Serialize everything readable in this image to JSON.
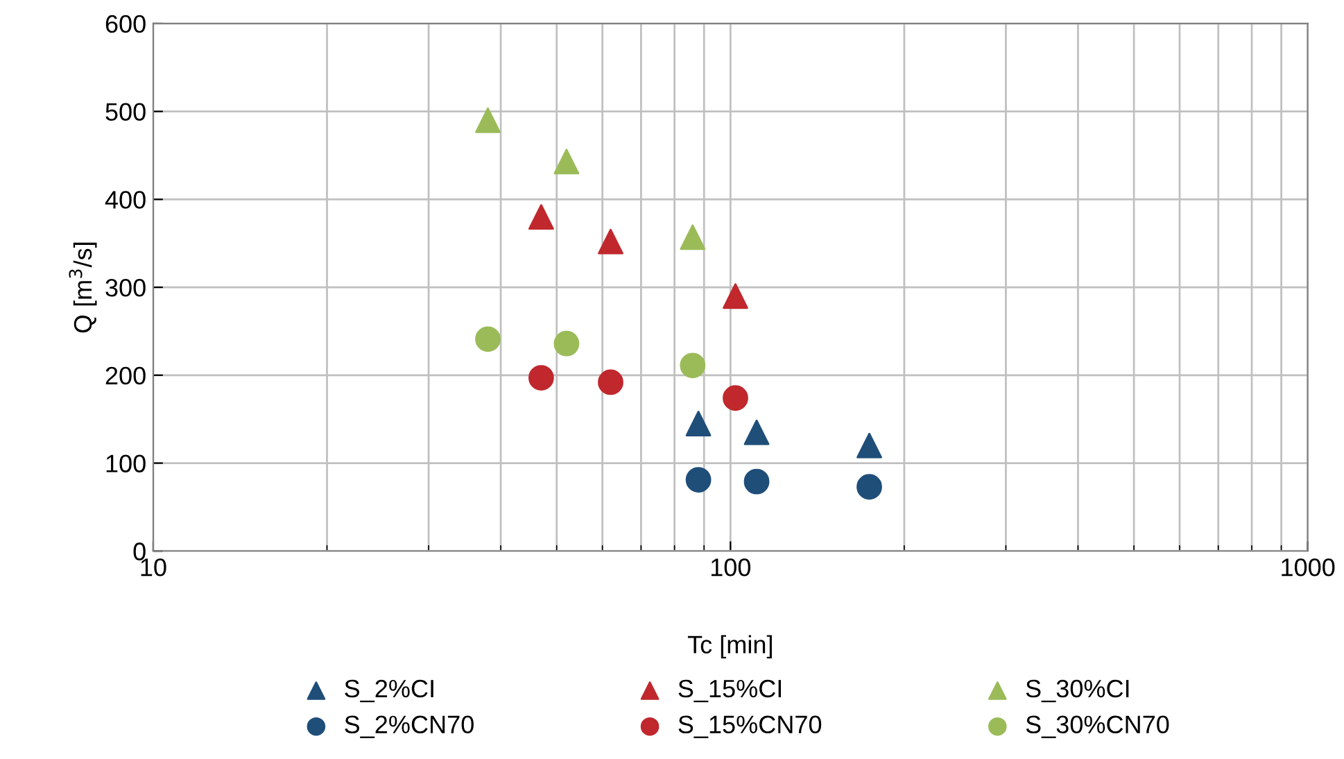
{
  "chart_data": {
    "type": "scatter",
    "xlabel": "Tc [min]",
    "ylabel": "Q [m$^{3}$/s]",
    "log": "x",
    "xlim": [
      10,
      1000
    ],
    "xticks": [
      10,
      100,
      1000
    ],
    "ylim": [
      0,
      600
    ],
    "yticks": [
      0,
      100,
      200,
      300,
      400,
      500,
      600
    ],
    "grid": true,
    "legend": "bottom",
    "series": [
      {
        "name": "S_2%CI",
        "color": "#1f4e79",
        "marker": "triangle",
        "x": [
          88,
          111,
          174
        ],
        "values": [
          145,
          135,
          120
        ]
      },
      {
        "name": "S_15%CI",
        "color": "#c0282d",
        "marker": "triangle",
        "x": [
          47,
          62,
          102
        ],
        "values": [
          380,
          352,
          290
        ]
      },
      {
        "name": "S_30%CI",
        "color": "#9bbb59",
        "marker": "triangle",
        "x": [
          38,
          52,
          86
        ],
        "values": [
          490,
          443,
          357
        ]
      },
      {
        "name": "S_2%CN70",
        "color": "#1f4e79",
        "marker": "circle",
        "x": [
          88,
          111,
          174
        ],
        "values": [
          81,
          79,
          73
        ]
      },
      {
        "name": "S_15%CN70",
        "color": "#c0282d",
        "marker": "circle",
        "x": [
          47,
          62,
          102
        ],
        "values": [
          197,
          192,
          174
        ]
      },
      {
        "name": "S_30%CN70",
        "color": "#9bbb59",
        "marker": "circle",
        "x": [
          38,
          52,
          86
        ],
        "values": [
          241,
          236,
          211
        ]
      }
    ]
  }
}
